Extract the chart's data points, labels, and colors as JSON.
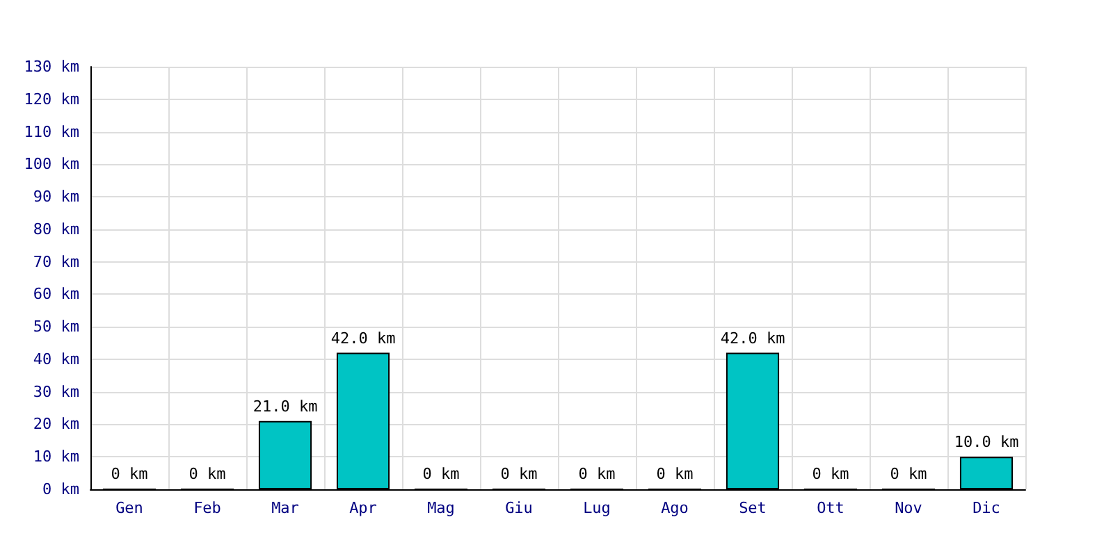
{
  "chart_data": {
    "type": "bar",
    "categories": [
      "Gen",
      "Feb",
      "Mar",
      "Apr",
      "Mag",
      "Giu",
      "Lug",
      "Ago",
      "Set",
      "Ott",
      "Nov",
      "Dic"
    ],
    "values": [
      0,
      0,
      21,
      42,
      0,
      0,
      0,
      0,
      42,
      0,
      0,
      10
    ],
    "value_labels": [
      "0 km",
      "0 km",
      "21.0 km",
      "42.0 km",
      "0 km",
      "0 km",
      "0 km",
      "0 km",
      "42.0 km",
      "0 km",
      "0 km",
      "10.0 km"
    ],
    "color": "#00c4c4",
    "ylim": [
      0,
      130
    ],
    "yticks": [
      {
        "value": 0,
        "label": "0 km"
      },
      {
        "value": 10,
        "label": "10 km"
      },
      {
        "value": 20,
        "label": "20 km"
      },
      {
        "value": 30,
        "label": "30 km"
      },
      {
        "value": 40,
        "label": "40 km"
      },
      {
        "value": 50,
        "label": "50 km"
      },
      {
        "value": 60,
        "label": "60 km"
      },
      {
        "value": 70,
        "label": "70 km"
      },
      {
        "value": 80,
        "label": "80 km"
      },
      {
        "value": 90,
        "label": "90 km"
      },
      {
        "value": 100,
        "label": "100 km"
      },
      {
        "value": 110,
        "label": "110 km"
      },
      {
        "value": 120,
        "label": "120 km"
      },
      {
        "value": 130,
        "label": "130 km"
      }
    ],
    "grid": true
  }
}
